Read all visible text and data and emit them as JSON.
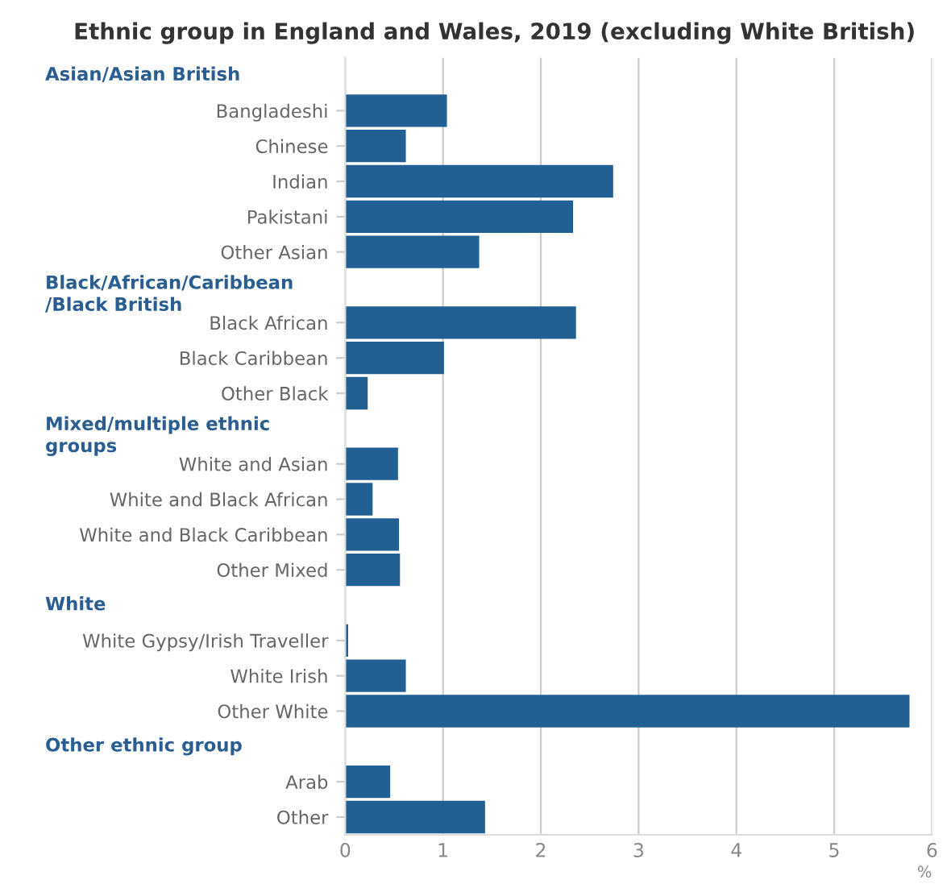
{
  "chart_data": {
    "type": "bar",
    "orientation": "horizontal",
    "title": "Ethnic group in England and Wales, 2019 (excluding White British)",
    "categories": [
      null,
      "Bangladeshi",
      "Chinese",
      "Indian",
      "Pakistani",
      "Other Asian",
      null,
      "Black African",
      "Black Caribbean",
      "Other Black",
      null,
      "White and Asian",
      "White and Black African",
      "White and Black Caribbean",
      "Other Mixed",
      null,
      "White Gypsy/Irish Traveller",
      "White Irish",
      "Other White",
      null,
      "Arab",
      "Other"
    ],
    "values": [
      null,
      1.04,
      0.62,
      2.74,
      2.33,
      1.37,
      null,
      2.36,
      1.01,
      0.23,
      null,
      0.54,
      0.28,
      0.55,
      0.56,
      null,
      0.03,
      0.62,
      5.77,
      null,
      0.46,
      1.43
    ],
    "color": "#225f92",
    "annotations": [
      "Asian/Asian British",
      "Black/African/Caribbean\n/Black British",
      "Mixed/multiple ethnic\ngroups",
      "White",
      "Other ethnic group"
    ],
    "xlabel": "%",
    "xlim": [
      0,
      6
    ],
    "xticks": [
      0,
      1,
      2,
      3,
      4,
      5,
      6
    ],
    "grid": "x"
  }
}
